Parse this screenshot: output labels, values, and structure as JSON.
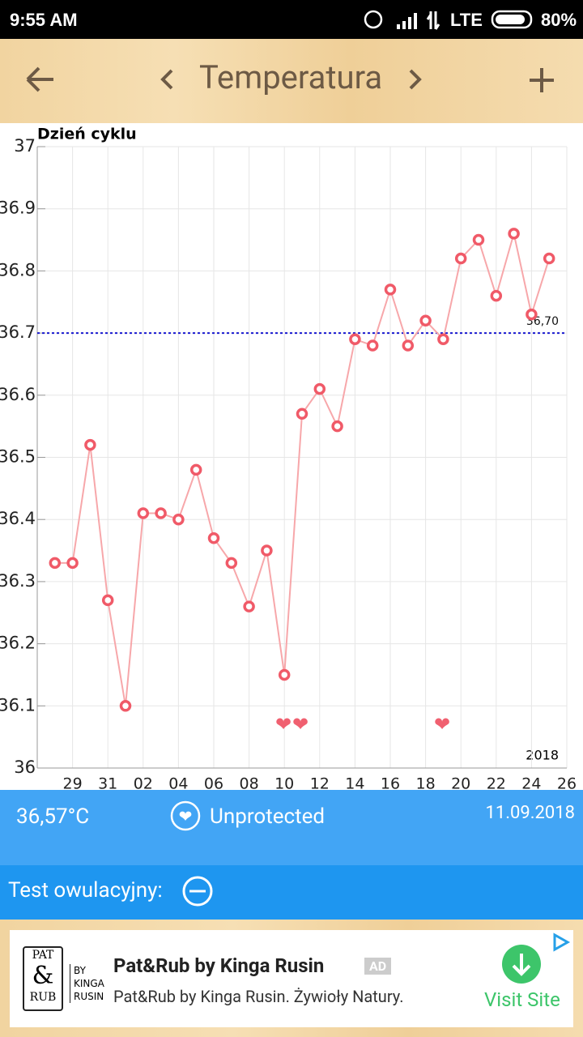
{
  "status_bar": {
    "time": "9:55 AM",
    "network": "LTE",
    "battery": "80%"
  },
  "toolbar": {
    "title": "Temperatura"
  },
  "chart_data": {
    "type": "line",
    "y_title": "Dzień cyklu",
    "year_label": "2018",
    "categories": [
      null,
      null,
      "29",
      null,
      "31",
      null,
      "02",
      null,
      "04",
      null,
      "06",
      null,
      "08",
      null,
      "10",
      null,
      "12",
      null,
      "14",
      null,
      "16",
      null,
      "18",
      null,
      "20",
      null,
      "22",
      null,
      "24",
      null,
      "26"
    ],
    "series": [
      {
        "color": "#f05a68",
        "values": [
          null,
          36.33,
          36.33,
          36.52,
          36.27,
          36.1,
          36.41,
          36.41,
          36.4,
          36.48,
          36.37,
          36.33,
          36.26,
          36.35,
          36.15,
          36.57,
          36.61,
          36.55,
          36.69,
          36.68,
          36.77,
          36.68,
          36.72,
          36.69,
          36.82,
          36.85,
          36.76,
          36.86,
          36.73,
          36.82,
          null
        ]
      }
    ],
    "reference_line": {
      "value": 36.7,
      "label": "36,70",
      "color": "#1a1ad0"
    },
    "ylim": [
      36,
      37
    ],
    "yticks": [
      36,
      36.1,
      36.2,
      36.3,
      36.4,
      36.5,
      36.6,
      36.7,
      36.8,
      36.9,
      37
    ],
    "grid": true
  },
  "summary": {
    "temperature": "36,57°C",
    "status": "Unprotected",
    "date": "11.09.2018"
  },
  "ovulation_test": {
    "label": "Test owulacyjny:"
  },
  "ad": {
    "logo_top": "PAT",
    "logo_mid": "&",
    "logo_bottom": "RUB",
    "logo_by": "BY",
    "logo_name1": "KINGA",
    "logo_name2": "RUSIN",
    "title": "Pat&Rub by Kinga Rusin",
    "badge": "AD",
    "text": "Pat&Rub by Kinga Rusin. Żywioły Natury.",
    "cta": "Visit Site"
  }
}
